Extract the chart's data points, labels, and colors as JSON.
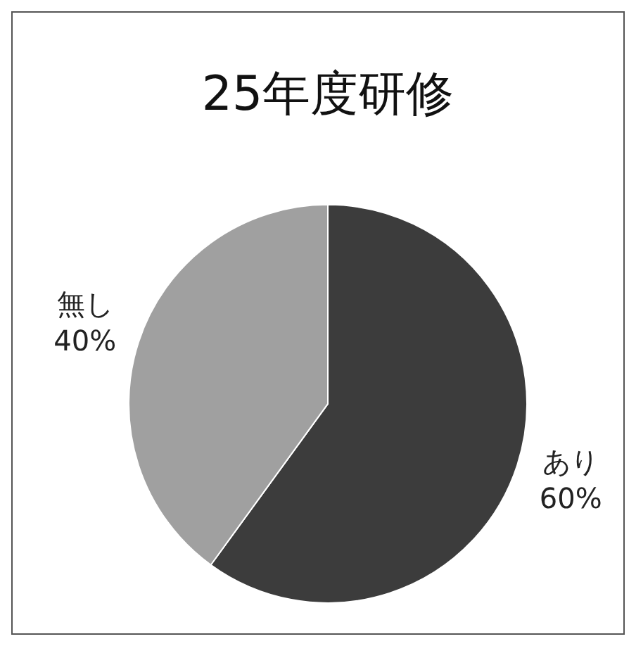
{
  "chart_data": {
    "type": "pie",
    "title": "25年度研修",
    "categories": [
      "あり",
      "無し"
    ],
    "values": [
      60,
      40
    ],
    "value_labels": [
      "60%",
      "40%"
    ],
    "colors": [
      "#3c3c3c",
      "#a0a0a0"
    ],
    "legend": false
  }
}
